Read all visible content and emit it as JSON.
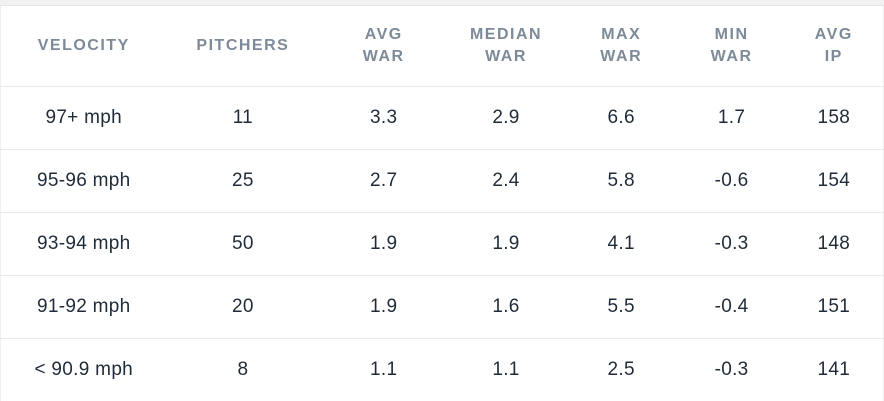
{
  "chart_data": {
    "type": "table",
    "title": "",
    "headers": [
      "VELOCITY",
      "PITCHERS",
      "AVG\nWAR",
      "MEDIAN\nWAR",
      "MAX\nWAR",
      "MIN\nWAR",
      "AVG\nIP"
    ],
    "header_keys": [
      "velocity",
      "pitchers",
      "avg-war",
      "median-war",
      "max-war",
      "min-war",
      "avg-ip"
    ],
    "rows": [
      [
        "97+ mph",
        "11",
        "3.3",
        "2.9",
        "6.6",
        "1.7",
        "158"
      ],
      [
        "95-96 mph",
        "25",
        "2.7",
        "2.4",
        "5.8",
        "-0.6",
        "154"
      ],
      [
        "93-94 mph",
        "50",
        "1.9",
        "1.9",
        "4.1",
        "-0.3",
        "148"
      ],
      [
        "91-92 mph",
        "20",
        "1.9",
        "1.6",
        "5.5",
        "-0.4",
        "151"
      ],
      [
        "< 90.9 mph",
        "8",
        "1.1",
        "1.1",
        "2.5",
        "-0.3",
        "141"
      ]
    ]
  },
  "colors": {
    "header_text": "#7d8a98",
    "body_text": "#1f2b38",
    "divider": "#e9e9ea",
    "top_band": "#f2f2f2",
    "background": "#ffffff"
  }
}
